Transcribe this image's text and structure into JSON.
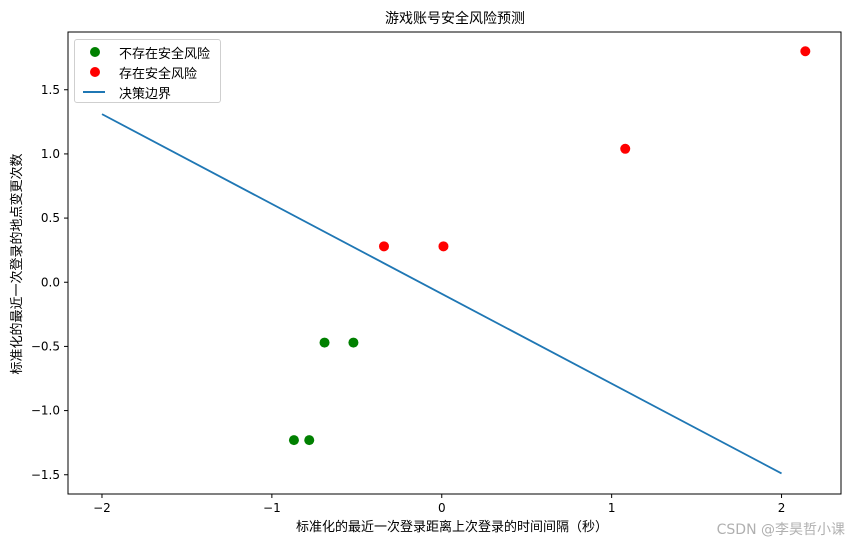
{
  "chart_data": {
    "type": "scatter",
    "title": "游戏账号安全风险预测",
    "xlabel": "标准化的最近一次登录距离上次登录的时间间隔（秒）",
    "ylabel": "标准化的最近一次登录的地点变更次数",
    "xlim": [
      -2.2,
      2.35
    ],
    "ylim": [
      -1.65,
      1.95
    ],
    "xticks": [
      -2,
      -1,
      0,
      1,
      2
    ],
    "xtick_labels": [
      "−2",
      "−1",
      "0",
      "1",
      "2"
    ],
    "yticks": [
      -1.5,
      -1.0,
      -0.5,
      0.0,
      0.5,
      1.0,
      1.5
    ],
    "ytick_labels": [
      "−1.5",
      "−1.0",
      "−0.5",
      "0.0",
      "0.5",
      "1.0",
      "1.5"
    ],
    "grid": false,
    "legend_position": "top-left",
    "series": [
      {
        "name": "不存在安全风险",
        "color": "#008000",
        "kind": "scatter",
        "points": [
          [
            -0.69,
            -0.47
          ],
          [
            -0.52,
            -0.47
          ],
          [
            -0.87,
            -1.23
          ],
          [
            -0.78,
            -1.23
          ]
        ]
      },
      {
        "name": "存在安全风险",
        "color": "#ff0000",
        "kind": "scatter",
        "points": [
          [
            -0.34,
            0.28
          ],
          [
            0.01,
            0.28
          ],
          [
            1.08,
            1.04
          ],
          [
            2.14,
            1.8
          ]
        ]
      },
      {
        "name": "决策边界",
        "color": "#1f77b4",
        "kind": "line",
        "points": [
          [
            -2.0,
            1.31
          ],
          [
            2.0,
            -1.49
          ]
        ]
      }
    ]
  },
  "watermark": "CSDN @李昊哲小课"
}
